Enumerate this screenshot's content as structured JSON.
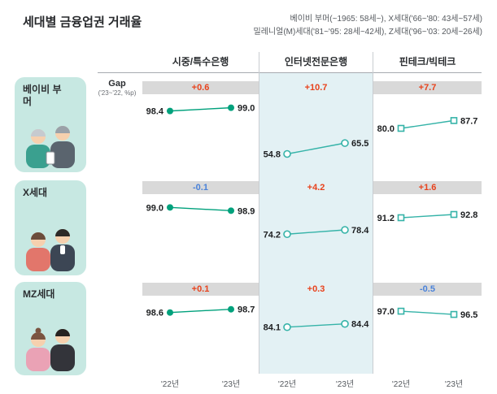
{
  "title": "세대별 금융업권 거래율",
  "legend": {
    "line1": "베이비 부머(~1965: 58세~), X세대('66~'80: 43세~57세)",
    "line2": "밀레니얼(M)세대('81~'95: 28세~42세), Z세대('96~'03: 20세~26세)"
  },
  "gap_caption": {
    "title": "Gap",
    "subtitle": "('23~'22, %p)"
  },
  "x_labels": [
    "'22년",
    "'23년"
  ],
  "colors": {
    "positive_gap": "#e8421c",
    "negative_gap": "#4a82d9",
    "gray_band": "#d9d9d9",
    "highlight_column_bg": "#e3f1f4",
    "series_filled": "#00a17c",
    "series_open": "#35b3a8",
    "generation_box_bg": "#c7e8e2"
  },
  "chart_data": {
    "type": "line",
    "title": "세대별 금융업권 거래율",
    "x": [
      "'22년",
      "'23년"
    ],
    "unit": "%",
    "columns": [
      {
        "label": "시중/특수은행",
        "marker": "filled-circle",
        "highlighted": false
      },
      {
        "label": "인터넷전문은행",
        "marker": "open-circle",
        "highlighted": true
      },
      {
        "label": "핀테크/빅테크",
        "marker": "open-square",
        "highlighted": false
      }
    ],
    "panels": [
      {
        "generation": "베이비 부머",
        "series": [
          {
            "column": "시중/특수은행",
            "values": [
              98.4,
              99.0
            ],
            "gap": "+0.6"
          },
          {
            "column": "인터넷전문은행",
            "values": [
              54.8,
              65.5
            ],
            "gap": "+10.7"
          },
          {
            "column": "핀테크/빅테크",
            "values": [
              80.0,
              87.7
            ],
            "gap": "+7.7"
          }
        ]
      },
      {
        "generation": "X세대",
        "series": [
          {
            "column": "시중/특수은행",
            "values": [
              99.0,
              98.9
            ],
            "gap": "-0.1"
          },
          {
            "column": "인터넷전문은행",
            "values": [
              74.2,
              78.4
            ],
            "gap": "+4.2"
          },
          {
            "column": "핀테크/빅테크",
            "values": [
              91.2,
              92.8
            ],
            "gap": "+1.6"
          }
        ]
      },
      {
        "generation": "MZ세대",
        "series": [
          {
            "column": "시중/특수은행",
            "values": [
              98.6,
              98.7
            ],
            "gap": "+0.1"
          },
          {
            "column": "인터넷전문은행",
            "values": [
              84.1,
              84.4
            ],
            "gap": "+0.3"
          },
          {
            "column": "핀테크/빅테크",
            "values": [
              97.0,
              96.5
            ],
            "gap": "-0.5"
          }
        ]
      }
    ]
  }
}
